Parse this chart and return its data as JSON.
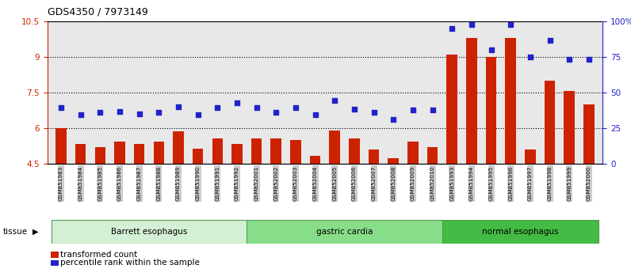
{
  "title": "GDS4350 / 7973149",
  "samples": [
    "GSM851983",
    "GSM851984",
    "GSM851985",
    "GSM851986",
    "GSM851987",
    "GSM851988",
    "GSM851989",
    "GSM851990",
    "GSM851991",
    "GSM851992",
    "GSM852001",
    "GSM852002",
    "GSM852003",
    "GSM852004",
    "GSM852005",
    "GSM852006",
    "GSM852007",
    "GSM852008",
    "GSM852009",
    "GSM852010",
    "GSM851993",
    "GSM851994",
    "GSM851995",
    "GSM851996",
    "GSM851997",
    "GSM851998",
    "GSM851999",
    "GSM852000"
  ],
  "bar_values": [
    6.0,
    5.35,
    5.2,
    5.45,
    5.35,
    5.45,
    5.85,
    5.15,
    5.55,
    5.35,
    5.55,
    5.55,
    5.5,
    4.85,
    5.9,
    5.55,
    5.1,
    4.75,
    5.45,
    5.2,
    9.1,
    9.8,
    9.0,
    9.8,
    5.1,
    8.0,
    7.55,
    7.0
  ],
  "percentile_values": [
    6.85,
    6.55,
    6.65,
    6.7,
    6.6,
    6.65,
    6.9,
    6.55,
    6.85,
    7.05,
    6.85,
    6.65,
    6.85,
    6.55,
    7.15,
    6.8,
    6.65,
    6.35,
    6.75,
    6.75,
    10.2,
    10.35,
    9.3,
    10.35,
    9.0,
    9.7,
    8.9,
    8.9
  ],
  "groups": [
    {
      "label": "Barrett esophagus",
      "start": 0,
      "end": 10,
      "color": "#d4f0d4"
    },
    {
      "label": "gastric cardia",
      "start": 10,
      "end": 20,
      "color": "#88dd88"
    },
    {
      "label": "normal esophagus",
      "start": 20,
      "end": 28,
      "color": "#44bb44"
    }
  ],
  "ylim": [
    4.5,
    10.5
  ],
  "yticks": [
    4.5,
    6.0,
    7.5,
    9.0,
    10.5
  ],
  "ytick_labels": [
    "4.5",
    "6",
    "7.5",
    "9",
    "10.5"
  ],
  "right_ytick_labels": [
    "0",
    "25",
    "50",
    "75",
    "100%"
  ],
  "bar_color": "#cc2200",
  "dot_color": "#2222cc",
  "grid_dotted_at": [
    6.0,
    7.5,
    9.0
  ],
  "background_color": "#e8e8e8",
  "tick_bg_color": "#cccccc",
  "left_axis_color": "#cc2200",
  "right_axis_color": "#2222cc",
  "legend": [
    {
      "color": "#cc2200",
      "label": "transformed count"
    },
    {
      "color": "#2222cc",
      "label": "percentile rank within the sample"
    }
  ]
}
